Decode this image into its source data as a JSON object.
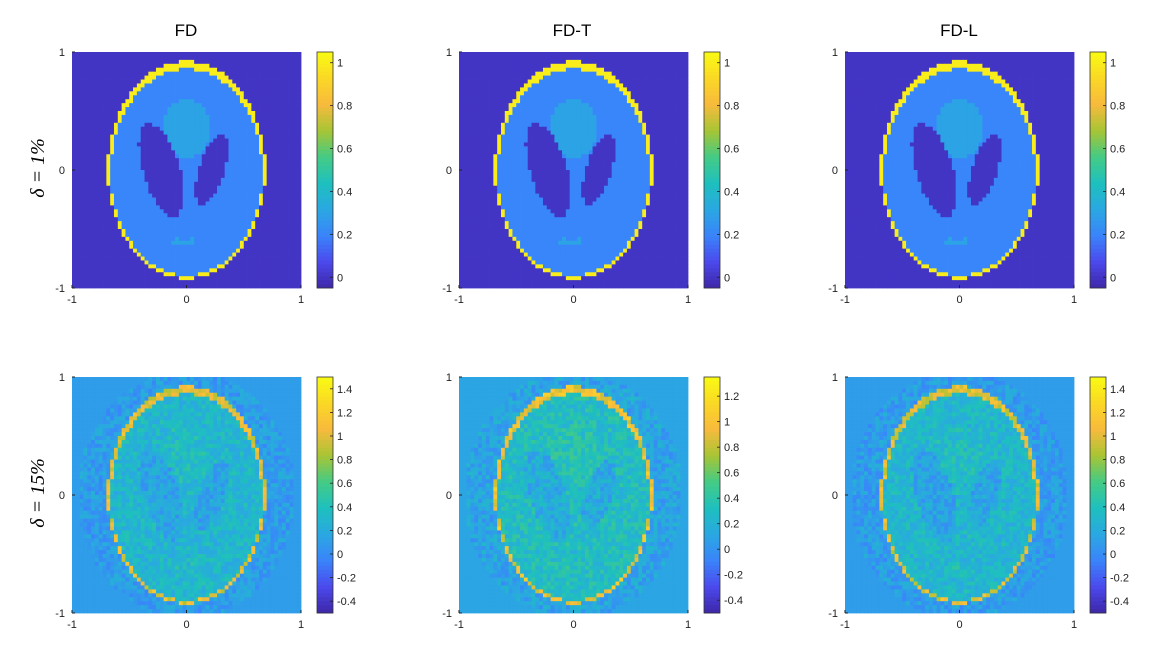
{
  "figure": {
    "column_titles": [
      "FD",
      "FD-T",
      "FD-L"
    ],
    "row_labels": [
      "δ = 1%",
      "δ = 15%"
    ]
  },
  "colormap": [
    "#3e26a8",
    "#4b4aed",
    "#3a84fb",
    "#2aa8e1",
    "#1ec0be",
    "#45cb84",
    "#a8c534",
    "#f8ba3d",
    "#fad825",
    "#f9fb14"
  ],
  "chart_data": [
    {
      "type": "heatmap",
      "panel": "FD, δ = 1%",
      "x": {
        "ticks": [
          -1,
          0,
          1
        ],
        "lim": [
          -1,
          1
        ]
      },
      "y": {
        "ticks": [
          -1,
          0,
          1
        ],
        "lim": [
          -1,
          1
        ]
      },
      "colorbar": {
        "lim": [
          -0.05,
          1.05
        ],
        "ticks": [
          0,
          0.2,
          0.4,
          0.6,
          0.8,
          1
        ],
        "tick_labels": [
          "0",
          "0.2",
          "0.4",
          "0.6",
          "0.8",
          "1"
        ]
      },
      "levels": {
        "background": 0,
        "skull": 1,
        "brain": 0.2,
        "ventricles": 0,
        "central_region": 0.3
      },
      "noise": 0
    },
    {
      "type": "heatmap",
      "panel": "FD-T, δ = 1%",
      "x": {
        "ticks": [
          -1,
          0,
          1
        ],
        "lim": [
          -1,
          1
        ]
      },
      "y": {
        "ticks": [
          -1,
          0,
          1
        ],
        "lim": [
          -1,
          1
        ]
      },
      "colorbar": {
        "lim": [
          -0.05,
          1.05
        ],
        "ticks": [
          0,
          0.2,
          0.4,
          0.6,
          0.8,
          1
        ],
        "tick_labels": [
          "0",
          "0.2",
          "0.4",
          "0.6",
          "0.8",
          "1"
        ]
      },
      "levels": {
        "background": 0,
        "skull": 1,
        "brain": 0.2,
        "ventricles": 0,
        "central_region": 0.3
      },
      "noise": 0
    },
    {
      "type": "heatmap",
      "panel": "FD-L, δ = 1%",
      "x": {
        "ticks": [
          -1,
          0,
          1
        ],
        "lim": [
          -1,
          1
        ]
      },
      "y": {
        "ticks": [
          -1,
          0,
          1
        ],
        "lim": [
          -1,
          1
        ]
      },
      "colorbar": {
        "lim": [
          -0.05,
          1.05
        ],
        "ticks": [
          0,
          0.2,
          0.4,
          0.6,
          0.8,
          1
        ],
        "tick_labels": [
          "0",
          "0.2",
          "0.4",
          "0.6",
          "0.8",
          "1"
        ]
      },
      "levels": {
        "background": 0,
        "skull": 1,
        "brain": 0.2,
        "ventricles": 0,
        "central_region": 0.3
      },
      "noise": 0
    },
    {
      "type": "heatmap",
      "panel": "FD, δ = 15%",
      "x": {
        "ticks": [
          -1,
          0,
          1
        ],
        "lim": [
          -1,
          1
        ]
      },
      "y": {
        "ticks": [
          -1,
          0,
          1
        ],
        "lim": [
          -1,
          1
        ]
      },
      "colorbar": {
        "lim": [
          -0.5,
          1.5
        ],
        "ticks": [
          -0.4,
          -0.2,
          0,
          0.2,
          0.4,
          0.6,
          0.8,
          1,
          1.2,
          1.4
        ],
        "tick_labels": [
          "-0.4",
          "-0.2",
          "0",
          "0.2",
          "0.4",
          "0.6",
          "0.8",
          "1",
          "1.2",
          "1.4"
        ]
      },
      "levels": {
        "background": 0.1,
        "skull": 1.0,
        "brain": 0.3,
        "ventricles": 0.15,
        "central_region": 0.35
      },
      "noise": 0.15
    },
    {
      "type": "heatmap",
      "panel": "FD-T, δ = 15%",
      "x": {
        "ticks": [
          -1,
          0,
          1
        ],
        "lim": [
          -1,
          1
        ]
      },
      "y": {
        "ticks": [
          -1,
          0,
          1
        ],
        "lim": [
          -1,
          1
        ]
      },
      "colorbar": {
        "lim": [
          -0.5,
          1.35
        ],
        "ticks": [
          -0.4,
          -0.2,
          0,
          0.2,
          0.4,
          0.6,
          0.8,
          1,
          1.2
        ],
        "tick_labels": [
          "-0.4",
          "-0.2",
          "0",
          "0.2",
          "0.4",
          "0.6",
          "0.8",
          "1",
          "1.2"
        ]
      },
      "levels": {
        "background": 0.1,
        "skull": 0.95,
        "brain": 0.3,
        "ventricles": 0.15,
        "central_region": 0.35
      },
      "noise": 0.15
    },
    {
      "type": "heatmap",
      "panel": "FD-L, δ = 15%",
      "x": {
        "ticks": [
          -1,
          0,
          1
        ],
        "lim": [
          -1,
          1
        ]
      },
      "y": {
        "ticks": [
          -1,
          0,
          1
        ],
        "lim": [
          -1,
          1
        ]
      },
      "colorbar": {
        "lim": [
          -0.5,
          1.5
        ],
        "ticks": [
          -0.4,
          -0.2,
          0,
          0.2,
          0.4,
          0.6,
          0.8,
          1,
          1.2,
          1.4
        ],
        "tick_labels": [
          "-0.4",
          "-0.2",
          "0",
          "0.2",
          "0.4",
          "0.6",
          "0.8",
          "1",
          "1.2",
          "1.4"
        ]
      },
      "levels": {
        "background": 0.1,
        "skull": 1.0,
        "brain": 0.3,
        "ventricles": 0.15,
        "central_region": 0.35
      },
      "noise": 0.15
    }
  ]
}
